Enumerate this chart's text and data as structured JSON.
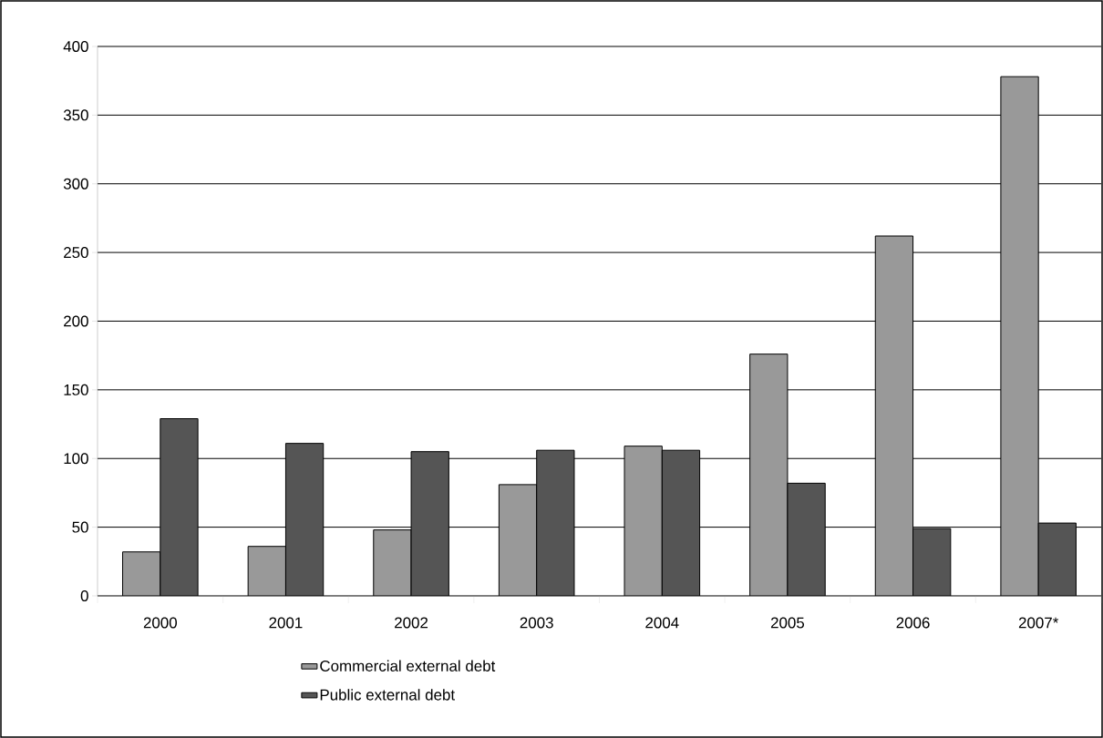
{
  "chart_data": {
    "type": "bar",
    "categories": [
      "2000",
      "2001",
      "2002",
      "2003",
      "2004",
      "2005",
      "2006",
      "2007*"
    ],
    "series": [
      {
        "name": "Commercial external debt",
        "color": "#999999",
        "values": [
          32,
          36,
          48,
          81,
          109,
          176,
          262,
          378
        ]
      },
      {
        "name": "Public external debt",
        "color": "#555555",
        "values": [
          129,
          111,
          105,
          106,
          106,
          82,
          49,
          53
        ]
      }
    ],
    "ylim": [
      0,
      400
    ],
    "yticks": [
      0,
      50,
      100,
      150,
      200,
      250,
      300,
      350,
      400
    ],
    "grid": "y",
    "legend": "bottom"
  }
}
